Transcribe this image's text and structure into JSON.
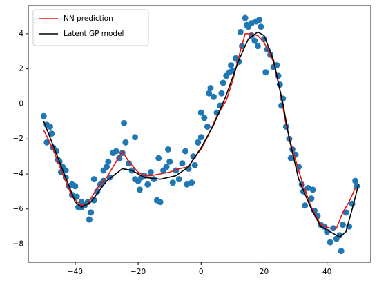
{
  "chart_data": {
    "type": "scatter",
    "xlim": [
      -54.9,
      53.9
    ],
    "ylim": [
      -9.04,
      5.61
    ],
    "xticks": [
      {
        "value": -40,
        "label": "−40"
      },
      {
        "value": -20,
        "label": "−20"
      },
      0,
      20,
      40
    ],
    "yticks": [
      {
        "value": -8,
        "label": "−8"
      },
      {
        "value": -6,
        "label": "−6"
      },
      {
        "value": -4,
        "label": "−4"
      },
      {
        "value": -2,
        "label": "−2"
      },
      0,
      2,
      4
    ],
    "legend": "upper left",
    "scatter": {
      "color": "#1f77b4",
      "x": [
        -50,
        -49,
        -49,
        -48,
        -47.5,
        -47,
        -46,
        -45.5,
        -45,
        -44.5,
        -44,
        -43,
        -43,
        -42,
        -41,
        -41,
        -40,
        -39.5,
        -39,
        -38,
        -38,
        -37,
        -36,
        -35.5,
        -35,
        -34,
        -34,
        -33,
        -32,
        -31,
        -31,
        -30,
        -29.5,
        -29,
        -28,
        -27,
        -26,
        -25,
        -24.5,
        -24,
        -23,
        -22,
        -21,
        -21,
        -20,
        -19.5,
        -19,
        -18,
        -17,
        -16,
        -15,
        -14,
        -13.5,
        -13,
        -12,
        -11,
        -10.5,
        -10,
        -9,
        -8,
        -7,
        -6,
        -5,
        -4.5,
        -4,
        -3,
        -2.5,
        -2,
        -1,
        0,
        0,
        1,
        2,
        2.5,
        3,
        4,
        5,
        6,
        6.5,
        7,
        8,
        9,
        9.5,
        10,
        11,
        12,
        12.5,
        13,
        14,
        14.5,
        15,
        16,
        16,
        17,
        17.5,
        18,
        18.5,
        19,
        20,
        20.5,
        21,
        22,
        23,
        24,
        24.5,
        25,
        25.5,
        26,
        27,
        28,
        28.5,
        29,
        30,
        31,
        32,
        32.5,
        33,
        34,
        35,
        35.5,
        36,
        37,
        38,
        39,
        40,
        41,
        42,
        43,
        44,
        44.5,
        45,
        46,
        47,
        48,
        49,
        49.5
      ],
      "values": [
        -0.7,
        -1.2,
        -2.2,
        -1.3,
        -1.7,
        -2.5,
        -2.7,
        -3.2,
        -3.3,
        -3.9,
        -3.6,
        -3.8,
        -4.2,
        -4.7,
        -4.6,
        -5.2,
        -4.7,
        -5.3,
        -5.9,
        -5.6,
        -5.9,
        -5.8,
        -5.6,
        -6.6,
        -6.2,
        -5.5,
        -4.3,
        -5.0,
        -4.6,
        -4.4,
        -3.8,
        -3.6,
        -3.3,
        -4.2,
        -2.8,
        -2.7,
        -3.1,
        -2.8,
        -1.1,
        -2.2,
        -3.4,
        -3.8,
        -1.9,
        -4.3,
        -4.4,
        -4.9,
        -4.2,
        -4.1,
        -4.6,
        -3.9,
        -4.3,
        -5.5,
        -3.1,
        -5.6,
        -3.8,
        -3.6,
        -2.6,
        -3.3,
        -4.5,
        -3.8,
        -4.3,
        -3.4,
        -2.7,
        -4.6,
        -3.7,
        -4.5,
        -3.0,
        -3.5,
        -2.2,
        -1.9,
        -0.5,
        -0.8,
        -1.3,
        0.6,
        0.9,
        0.4,
        -0.5,
        -0.1,
        0.6,
        1.2,
        1.6,
        1.8,
        2.2,
        1.9,
        2.6,
        2.4,
        4.1,
        3.3,
        4.9,
        4.5,
        4.4,
        3.9,
        4.6,
        3.6,
        4.7,
        3.3,
        4.8,
        4.4,
        3.7,
        1.8,
        3.1,
        2.8,
        2.1,
        2.2,
        1.6,
        1.1,
        -0.1,
        0.3,
        -1.3,
        -2.0,
        -3.1,
        -2.6,
        -2.9,
        -3.6,
        -4.6,
        -5.0,
        -5.8,
        -4.8,
        -5.4,
        -4.9,
        -6.1,
        -6.4,
        -6.9,
        -7.0,
        -7.3,
        -7.9,
        -7.1,
        -7.7,
        -7.5,
        -8.4,
        -6.9,
        -6.2,
        -7.0,
        -5.7,
        -4.4,
        -4.7
      ]
    },
    "series": [
      {
        "name": "NN prediction",
        "color": "#e8120c",
        "x": [
          -50,
          -47,
          -44,
          -41,
          -38,
          -36,
          -33,
          -30,
          -27,
          -25,
          -23,
          -20,
          -18,
          -16,
          -13,
          -10,
          -7,
          -4,
          -2,
          0,
          2,
          5,
          8,
          10,
          12,
          14,
          16,
          18,
          20,
          23,
          25,
          27,
          29,
          32,
          35,
          38,
          41,
          43,
          45,
          47,
          49
        ],
        "values": [
          -1.5,
          -2.6,
          -4.0,
          -5.3,
          -5.8,
          -5.7,
          -4.8,
          -4.2,
          -3.3,
          -2.7,
          -3.3,
          -3.9,
          -4.1,
          -4.1,
          -4.0,
          -3.9,
          -3.7,
          -3.6,
          -3.0,
          -2.6,
          -1.9,
          -0.7,
          0.2,
          1.3,
          2.7,
          4.0,
          4.0,
          3.9,
          3.5,
          2.4,
          0.8,
          -1.2,
          -2.6,
          -4.4,
          -5.9,
          -6.9,
          -7.1,
          -7.1,
          -6.2,
          -5.6,
          -4.8
        ]
      },
      {
        "name": "Latent GP model",
        "color": "#000000",
        "x": [
          -50,
          -45,
          -40,
          -38,
          -35,
          -30,
          -25,
          -22,
          -18,
          -13,
          -8,
          -4,
          0,
          4,
          8,
          12,
          15,
          18,
          20,
          23,
          26,
          28,
          31,
          35,
          38,
          41,
          44,
          46,
          48,
          50
        ],
        "values": [
          -1.0,
          -3.3,
          -5.6,
          -5.9,
          -5.6,
          -4.4,
          -3.7,
          -3.8,
          -4.2,
          -4.3,
          -4.1,
          -3.6,
          -2.5,
          -1.2,
          0.5,
          2.5,
          3.7,
          4.1,
          3.9,
          2.5,
          0.0,
          -2.0,
          -4.3,
          -6.0,
          -7.0,
          -7.3,
          -7.6,
          -7.3,
          -6.0,
          -4.6
        ]
      }
    ]
  }
}
